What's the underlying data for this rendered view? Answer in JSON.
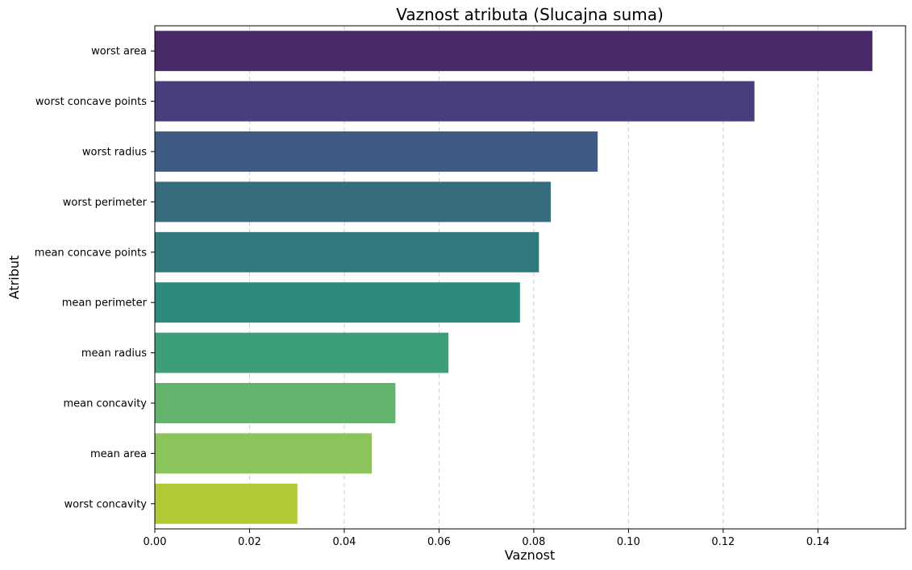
{
  "chart_data": {
    "type": "bar",
    "orientation": "horizontal",
    "title": "Vaznost atributa (Slucajna suma)",
    "xlabel": "Vaznost",
    "ylabel": "Atribut",
    "categories": [
      "worst area",
      "worst concave points",
      "worst radius",
      "worst perimeter",
      "mean concave points",
      "mean perimeter",
      "mean radius",
      "mean concavity",
      "mean area",
      "worst concavity"
    ],
    "values": [
      0.1515,
      0.1266,
      0.0935,
      0.0836,
      0.0811,
      0.0771,
      0.062,
      0.0508,
      0.0458,
      0.0301
    ],
    "colors": [
      "#482a68",
      "#463f7c",
      "#3f5b84",
      "#376c7e",
      "#307a7e",
      "#2e8a7c",
      "#3c9f79",
      "#62b46d",
      "#8ac45a",
      "#b2ca35"
    ],
    "xlim": [
      0,
      0.1585
    ],
    "xticks": [
      0.0,
      0.02,
      0.04,
      0.06,
      0.08,
      0.1,
      0.12,
      0.14
    ],
    "xtick_labels": [
      "0.00",
      "0.02",
      "0.04",
      "0.06",
      "0.08",
      "0.10",
      "0.12",
      "0.14"
    ],
    "grid": "x, dashed"
  }
}
